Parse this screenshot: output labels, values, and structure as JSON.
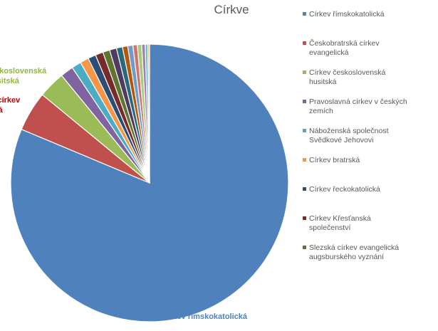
{
  "chart_data": {
    "type": "pie",
    "title": "Církve",
    "categories": [
      "Církev římskokatolická",
      "Českobratrská církev evangelická",
      "Církev československá husitská",
      "Pravoslavná církev v českých zemích",
      "Náboženská společnost Svědkové Jehovovi",
      "Církev bratrská",
      "Církev řeckokatolická",
      "Církev Křesťanská společenství",
      "Slezská církev evangelická augsburského vyznání",
      "",
      "",
      "",
      "",
      "",
      "",
      "",
      "",
      ""
    ],
    "values": [
      80.5,
      4.6,
      3.1,
      1.5,
      1.1,
      1.0,
      0.9,
      0.9,
      0.8,
      0.8,
      0.7,
      0.6,
      0.6,
      0.5,
      0.5,
      0.4,
      0.3,
      0.2
    ],
    "colors": [
      "#4f81bd",
      "#c0504d",
      "#9bbb59",
      "#8064a2",
      "#4bacc6",
      "#f79646",
      "#2c4d75",
      "#772c2a",
      "#5f7530",
      "#4d3b62",
      "#276a7c",
      "#b65708",
      "#729aca",
      "#cd7371",
      "#afc97a",
      "#9983b5",
      "#6fbdd1",
      "#f9ab6b"
    ],
    "legend": {
      "position": "right",
      "entries": [
        "Církev římskokatolická",
        "Českobratrská církev evangelická",
        "Církev československá husitská",
        "Pravoslavná církev v českých zemích",
        "Náboženská společnost Svědkové Jehovovi",
        "Církev bratrská",
        "Církev řeckokatolická",
        "Církev Křesťanská společenství",
        "Slezská církev evangelická augsburského vyznání"
      ]
    },
    "data_labels": [
      {
        "slice": 0,
        "lines": [
          "Církev římskokatolická"
        ]
      },
      {
        "slice": 1,
        "lines": [
          "Českobratrská církev",
          "evangelická"
        ]
      },
      {
        "slice": 2,
        "lines": [
          "Církev československá",
          "husitská"
        ]
      }
    ]
  }
}
